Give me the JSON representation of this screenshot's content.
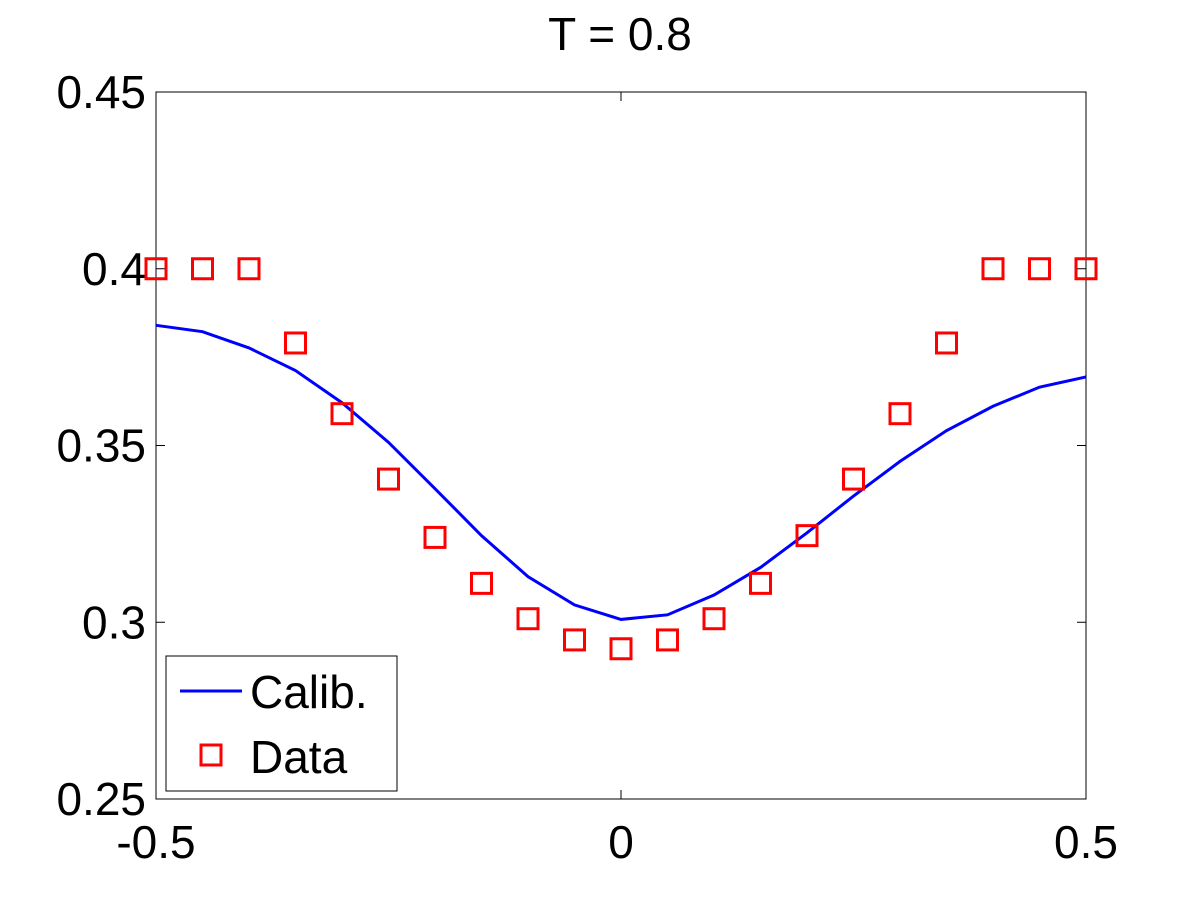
{
  "chart_data": {
    "type": "line",
    "title": "T = 0.8",
    "xlabel": "",
    "ylabel": "",
    "xlim": [
      -0.5,
      0.5
    ],
    "ylim": [
      0.25,
      0.45
    ],
    "xticks": [
      -0.5,
      0,
      0.5
    ],
    "xtick_labels": [
      "-0.5",
      "0",
      "0.5"
    ],
    "yticks": [
      0.25,
      0.3,
      0.35,
      0.4,
      0.45
    ],
    "ytick_labels": [
      "0.25",
      "0.3",
      "0.35",
      "0.4",
      "0.45"
    ],
    "grid": false,
    "legend": {
      "position": "bottom-left",
      "entries": [
        "Calib.",
        "Data"
      ]
    },
    "series": [
      {
        "name": "Calib.",
        "style": "line",
        "color": "#0000ff",
        "x": [
          -0.5,
          -0.45,
          -0.4,
          -0.35,
          -0.3,
          -0.25,
          -0.2,
          -0.15,
          -0.1,
          -0.05,
          0,
          0.05,
          0.1,
          0.15,
          0.2,
          0.25,
          0.3,
          0.35,
          0.4,
          0.45,
          0.5
        ],
        "y": [
          0.384,
          0.3822,
          0.3776,
          0.3712,
          0.3621,
          0.3509,
          0.3378,
          0.3245,
          0.3129,
          0.3049,
          0.3008,
          0.3021,
          0.3077,
          0.3155,
          0.3253,
          0.3357,
          0.3455,
          0.3542,
          0.3611,
          0.3665,
          0.3694
        ]
      },
      {
        "name": "Data",
        "style": "marker-square",
        "color": "#ff0000",
        "x": [
          -0.5,
          -0.45,
          -0.4,
          -0.35,
          -0.3,
          -0.25,
          -0.2,
          -0.15,
          -0.1,
          -0.05,
          0,
          0.05,
          0.1,
          0.15,
          0.2,
          0.25,
          0.3,
          0.35,
          0.4,
          0.45,
          0.5
        ],
        "y": [
          0.4,
          0.4,
          0.4,
          0.379,
          0.359,
          0.3405,
          0.324,
          0.311,
          0.301,
          0.295,
          0.2925,
          0.295,
          0.301,
          0.311,
          0.3245,
          0.3405,
          0.359,
          0.379,
          0.4,
          0.4,
          0.4
        ]
      }
    ]
  }
}
